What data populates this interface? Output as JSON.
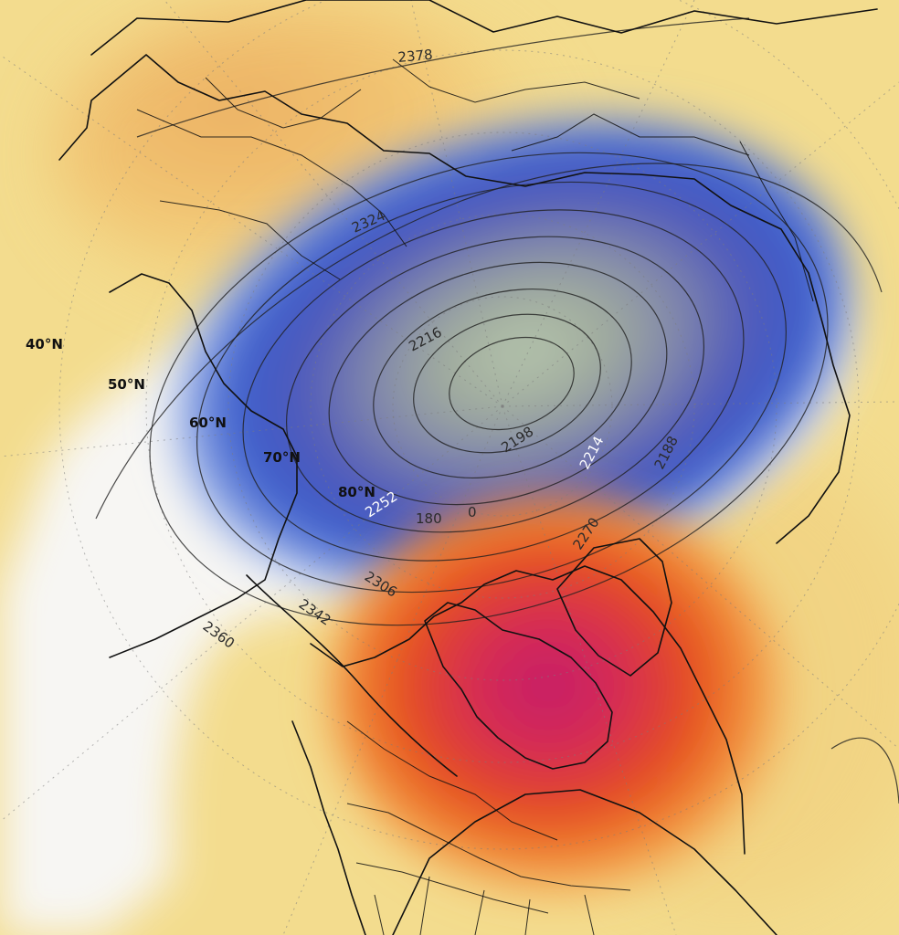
{
  "map": {
    "type": "polar-stereographic geopotential height anomaly map",
    "latitude_labels": [
      "40°N",
      "50°N",
      "60°N",
      "70°N",
      "80°N"
    ],
    "contour_labels": [
      "2378",
      "2324",
      "2216",
      "2198",
      "2214",
      "2188",
      "2252",
      "180",
      "0",
      "2270",
      "2306",
      "2342",
      "2360"
    ],
    "colors": {
      "background": "#f3dc8e",
      "warm_anomaly": "#e64a19",
      "strong_warm_anomaly": "#c51f69",
      "cold_anomaly": "#3757c8",
      "strong_cold_anomaly": "#253ea5",
      "vortex_core": "#a9b8a7"
    }
  }
}
